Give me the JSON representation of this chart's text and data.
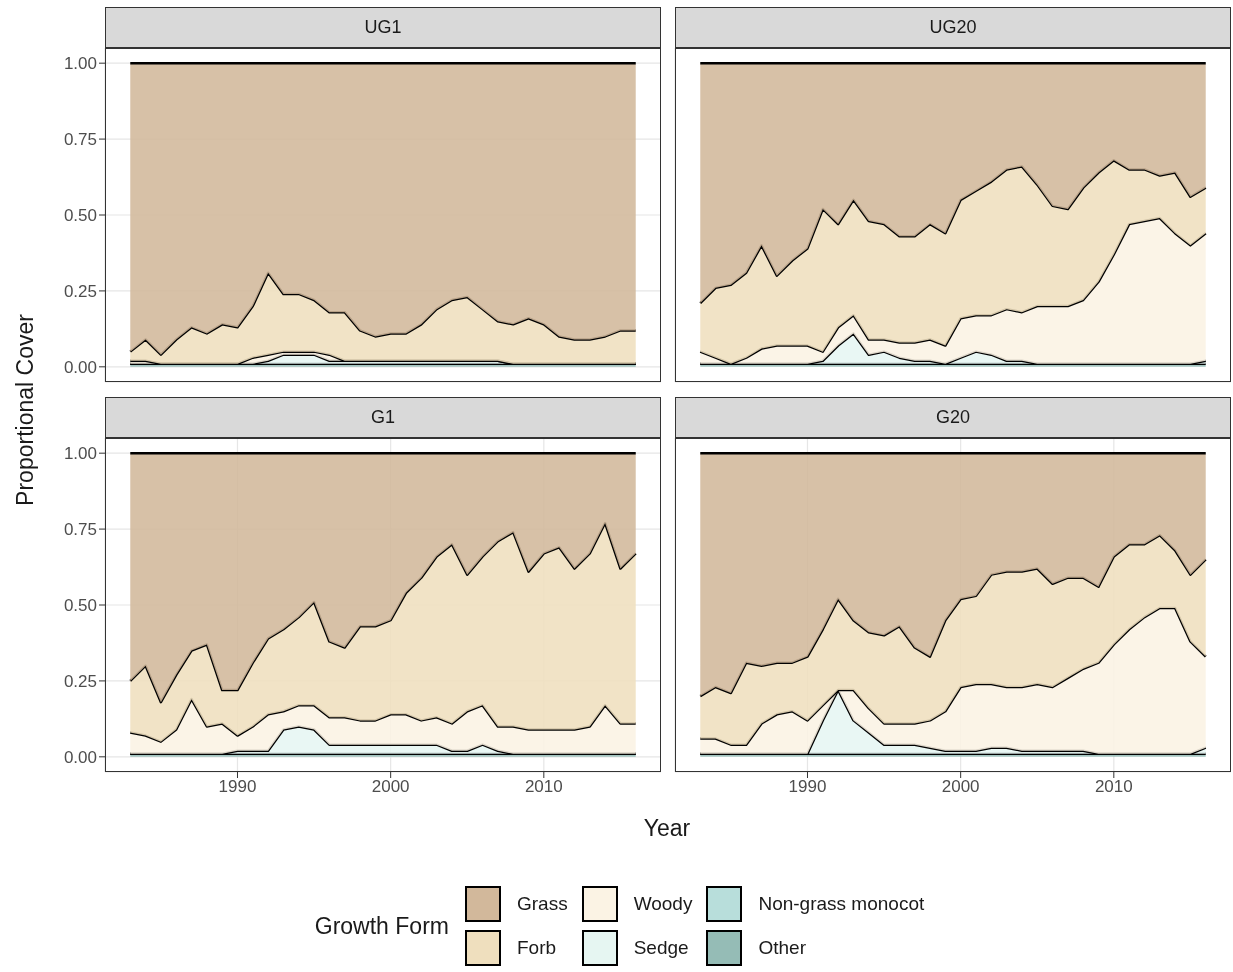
{
  "chart_data": [
    {
      "type": "area",
      "title": "UG1",
      "ylabel": "Proportional Cover",
      "stacked": true,
      "grid": true,
      "tick_labels": "y",
      "legend": "bottom",
      "legend_title": "Growth Form",
      "xlim": [
        1981.35,
        2017.65
      ],
      "ylim": [
        -0.05,
        1.05
      ],
      "yticks": [
        {
          "value": 0,
          "label": "0.00"
        },
        {
          "value": 0.25,
          "label": "0.25"
        },
        {
          "value": 0.5,
          "label": "0.50"
        },
        {
          "value": 0.75,
          "label": "0.75"
        },
        {
          "value": 1,
          "label": "1.00"
        }
      ],
      "x": [
        1983,
        1984,
        1985,
        1986,
        1987,
        1988,
        1989,
        1990,
        1991,
        1992,
        1993,
        1994,
        1995,
        1996,
        1997,
        1998,
        1999,
        2000,
        2001,
        2002,
        2003,
        2004,
        2005,
        2006,
        2007,
        2008,
        2009,
        2010,
        2011,
        2012,
        2013,
        2014,
        2015,
        2016
      ],
      "series": [
        {
          "name": "Other",
          "color": "#95bcb6",
          "values": [
            0.01,
            0.01,
            0.01,
            0.01,
            0.01,
            0.01,
            0.01,
            0.01,
            0.01,
            0.01,
            0.01,
            0.01,
            0.01,
            0.01,
            0.01,
            0.01,
            0.01,
            0.01,
            0.01,
            0.01,
            0.01,
            0.01,
            0.01,
            0.01,
            0.01,
            0.01,
            0.01,
            0.01,
            0.01,
            0.01,
            0.01,
            0.01,
            0.01,
            0.01
          ]
        },
        {
          "name": "Non-grass monocot",
          "color": "#b8dedb",
          "values": [
            null,
            null,
            null,
            null,
            null,
            null,
            null,
            null,
            null,
            null,
            null,
            null,
            null,
            null,
            null,
            null,
            null,
            null,
            null,
            null,
            null,
            null,
            null,
            null,
            null,
            null,
            null,
            null,
            null,
            null,
            null,
            null,
            null,
            null
          ]
        },
        {
          "name": "Sedge",
          "color": "#e6f6f2",
          "values": [
            0,
            0,
            0,
            0,
            0,
            0,
            0,
            0,
            0,
            0.01,
            0.03,
            0.03,
            0.03,
            0.01,
            0.01,
            0.01,
            0.01,
            0.01,
            0.01,
            0.01,
            0.01,
            0.01,
            0.01,
            0.01,
            0.01,
            0,
            0,
            0,
            0,
            0,
            0,
            0,
            0,
            0
          ]
        },
        {
          "name": "Woody",
          "color": "#fbf3e4",
          "values": [
            0.01,
            0.01,
            0,
            0,
            0,
            0,
            0,
            0,
            0.02,
            0.02,
            0.01,
            0.01,
            0.01,
            0.02,
            0,
            0,
            0,
            0,
            0,
            0,
            0,
            0,
            0,
            0,
            0,
            0,
            0,
            0,
            0,
            0,
            0,
            0,
            0,
            0
          ]
        },
        {
          "name": "Forb",
          "color": "#efdfbe",
          "values": [
            0.03,
            0.07,
            0.03,
            0.08,
            0.12,
            0.1,
            0.13,
            0.12,
            0.17,
            0.27,
            0.19,
            0.19,
            0.17,
            0.14,
            0.16,
            0.1,
            0.08,
            0.09,
            0.09,
            0.12,
            0.17,
            0.2,
            0.21,
            0.17,
            0.13,
            0.13,
            0.15,
            0.13,
            0.09,
            0.08,
            0.08,
            0.09,
            0.11,
            0.11
          ]
        },
        {
          "name": "Grass",
          "color": "#d2b89b",
          "values": [
            0.95,
            0.91,
            0.96,
            0.91,
            0.87,
            0.89,
            0.86,
            0.87,
            0.8,
            0.69,
            0.76,
            0.76,
            0.78,
            0.82,
            0.82,
            0.88,
            0.9,
            0.89,
            0.89,
            0.86,
            0.81,
            0.78,
            0.77,
            0.81,
            0.85,
            0.86,
            0.84,
            0.86,
            0.9,
            0.91,
            0.91,
            0.9,
            0.88,
            0.88
          ]
        }
      ]
    },
    {
      "type": "area",
      "title": "UG20",
      "stacked": true,
      "grid": true,
      "tick_labels": false,
      "xlim": [
        1981.35,
        2017.65
      ],
      "ylim": [
        -0.05,
        1.05
      ],
      "x": [
        1983,
        1984,
        1985,
        1986,
        1987,
        1988,
        1989,
        1990,
        1991,
        1992,
        1993,
        1994,
        1995,
        1996,
        1997,
        1998,
        1999,
        2000,
        2001,
        2002,
        2003,
        2004,
        2005,
        2006,
        2007,
        2008,
        2009,
        2010,
        2011,
        2012,
        2013,
        2014,
        2015,
        2016
      ],
      "series": [
        {
          "color": "#95bcb6",
          "values": [
            0.01,
            0.01,
            0.01,
            0.01,
            0.01,
            0.01,
            0.01,
            0.01,
            0.01,
            0.01,
            0.01,
            0.01,
            0.01,
            0.01,
            0.01,
            0.01,
            0.01,
            0.01,
            0.01,
            0.01,
            0.01,
            0.01,
            0.01,
            0.01,
            0.01,
            0.01,
            0.01,
            0.01,
            0.01,
            0.01,
            0.01,
            0.01,
            0.01,
            0.01
          ]
        },
        {
          "color": "#b8dedb",
          "values": [
            null,
            null,
            null,
            null,
            null,
            null,
            null,
            null,
            null,
            null,
            null,
            null,
            null,
            null,
            null,
            null,
            null,
            null,
            null,
            null,
            null,
            null,
            null,
            null,
            null,
            null,
            null,
            null,
            null,
            null,
            null,
            null,
            null,
            null
          ]
        },
        {
          "color": "#e6f6f2",
          "values": [
            0,
            0,
            0,
            0,
            0,
            0,
            0,
            0,
            0.01,
            0.06,
            0.1,
            0.03,
            0.04,
            0.02,
            0.01,
            0.01,
            0,
            0.02,
            0.04,
            0.03,
            0.01,
            0.01,
            0,
            0,
            0,
            0,
            0,
            0,
            0,
            0,
            0,
            0,
            0,
            0.01
          ]
        },
        {
          "color": "#fbf3e4",
          "values": [
            0.04,
            0.02,
            0,
            0.02,
            0.05,
            0.06,
            0.06,
            0.06,
            0.03,
            0.06,
            0.06,
            0.05,
            0.04,
            0.05,
            0.06,
            0.07,
            0.06,
            0.13,
            0.12,
            0.13,
            0.17,
            0.16,
            0.19,
            0.19,
            0.19,
            0.21,
            0.27,
            0.36,
            0.46,
            0.47,
            0.48,
            0.43,
            0.39,
            0.42
          ]
        },
        {
          "color": "#efdfbe",
          "values": [
            0.16,
            0.23,
            0.26,
            0.28,
            0.34,
            0.23,
            0.28,
            0.32,
            0.47,
            0.34,
            0.38,
            0.39,
            0.38,
            0.35,
            0.35,
            0.38,
            0.37,
            0.39,
            0.41,
            0.44,
            0.46,
            0.48,
            0.4,
            0.33,
            0.32,
            0.37,
            0.36,
            0.31,
            0.18,
            0.17,
            0.14,
            0.2,
            0.16,
            0.15
          ]
        },
        {
          "color": "#d2b89b",
          "values": [
            0.79,
            0.74,
            0.73,
            0.69,
            0.6,
            0.7,
            0.65,
            0.61,
            0.48,
            0.53,
            0.45,
            0.52,
            0.53,
            0.57,
            0.57,
            0.53,
            0.56,
            0.45,
            0.42,
            0.39,
            0.35,
            0.34,
            0.4,
            0.47,
            0.48,
            0.41,
            0.36,
            0.32,
            0.35,
            0.35,
            0.37,
            0.36,
            0.44,
            0.41
          ]
        }
      ]
    },
    {
      "type": "area",
      "title": "G1",
      "xlabel": "Year",
      "stacked": true,
      "grid": true,
      "xlim": [
        1981.35,
        2017.65
      ],
      "xticks": [
        1990,
        2000,
        2010
      ],
      "ylim": [
        -0.05,
        1.05
      ],
      "yticks": [
        {
          "value": 0,
          "label": "0.00"
        },
        {
          "value": 0.25,
          "label": "0.25"
        },
        {
          "value": 0.5,
          "label": "0.50"
        },
        {
          "value": 0.75,
          "label": "0.75"
        },
        {
          "value": 1,
          "label": "1.00"
        }
      ],
      "x": [
        1983,
        1984,
        1985,
        1986,
        1987,
        1988,
        1989,
        1990,
        1991,
        1992,
        1993,
        1994,
        1995,
        1996,
        1997,
        1998,
        1999,
        2000,
        2001,
        2002,
        2003,
        2004,
        2005,
        2006,
        2007,
        2008,
        2009,
        2010,
        2011,
        2012,
        2013,
        2014,
        2015,
        2016
      ],
      "series": [
        {
          "color": "#95bcb6",
          "values": [
            0.01,
            0.01,
            0.01,
            0.01,
            0.01,
            0.01,
            0.01,
            0.01,
            0.01,
            0.01,
            0.01,
            0.01,
            0.01,
            0.01,
            0.01,
            0.01,
            0.01,
            0.01,
            0.01,
            0.01,
            0.01,
            0.01,
            0.01,
            0.01,
            0.01,
            0.01,
            0.01,
            0.01,
            0.01,
            0.01,
            0.01,
            0.01,
            0.01,
            0.01
          ]
        },
        {
          "color": "#b8dedb",
          "values": [
            null,
            null,
            null,
            null,
            null,
            null,
            null,
            null,
            null,
            null,
            null,
            null,
            null,
            null,
            null,
            null,
            null,
            null,
            null,
            null,
            null,
            null,
            null,
            null,
            null,
            null,
            null,
            null,
            null,
            null,
            null,
            null,
            null,
            null
          ]
        },
        {
          "color": "#e6f6f2",
          "values": [
            0,
            0,
            0,
            0,
            0,
            0,
            0,
            0.01,
            0.01,
            0.01,
            0.08,
            0.09,
            0.08,
            0.03,
            0.03,
            0.03,
            0.03,
            0.03,
            0.03,
            0.03,
            0.03,
            0.01,
            0.01,
            0.03,
            0.01,
            0,
            0,
            0,
            0,
            0,
            0,
            0,
            0,
            0
          ]
        },
        {
          "color": "#fbf3e4",
          "values": [
            0.07,
            0.06,
            0.04,
            0.08,
            0.18,
            0.09,
            0.1,
            0.05,
            0.08,
            0.12,
            0.06,
            0.07,
            0.08,
            0.09,
            0.09,
            0.08,
            0.08,
            0.1,
            0.1,
            0.08,
            0.09,
            0.09,
            0.13,
            0.13,
            0.08,
            0.09,
            0.08,
            0.08,
            0.08,
            0.08,
            0.09,
            0.16,
            0.1,
            0.1
          ]
        },
        {
          "color": "#efdfbe",
          "values": [
            0.17,
            0.23,
            0.13,
            0.18,
            0.16,
            0.27,
            0.11,
            0.15,
            0.21,
            0.25,
            0.27,
            0.29,
            0.34,
            0.25,
            0.23,
            0.31,
            0.31,
            0.31,
            0.4,
            0.47,
            0.53,
            0.59,
            0.45,
            0.49,
            0.61,
            0.64,
            0.52,
            0.58,
            0.6,
            0.53,
            0.57,
            0.6,
            0.51,
            0.56
          ]
        },
        {
          "color": "#d2b89b",
          "values": [
            0.75,
            0.7,
            0.82,
            0.73,
            0.65,
            0.63,
            0.78,
            0.78,
            0.69,
            0.61,
            0.58,
            0.54,
            0.49,
            0.62,
            0.64,
            0.57,
            0.57,
            0.55,
            0.46,
            0.41,
            0.34,
            0.3,
            0.4,
            0.34,
            0.29,
            0.26,
            0.39,
            0.33,
            0.31,
            0.38,
            0.33,
            0.23,
            0.38,
            0.33
          ]
        }
      ]
    },
    {
      "type": "area",
      "title": "G20",
      "stacked": true,
      "grid": true,
      "tick_labels": "x",
      "xlim": [
        1981.35,
        2017.65
      ],
      "xticks": [
        1990,
        2000,
        2010
      ],
      "ylim": [
        -0.05,
        1.05
      ],
      "x": [
        1983,
        1984,
        1985,
        1986,
        1987,
        1988,
        1989,
        1990,
        1991,
        1992,
        1993,
        1994,
        1995,
        1996,
        1997,
        1998,
        1999,
        2000,
        2001,
        2002,
        2003,
        2004,
        2005,
        2006,
        2007,
        2008,
        2009,
        2010,
        2011,
        2012,
        2013,
        2014,
        2015,
        2016
      ],
      "series": [
        {
          "color": "#95bcb6",
          "values": [
            0.01,
            0.01,
            0.01,
            0.01,
            0.01,
            0.01,
            0.01,
            0.01,
            0.01,
            0.01,
            0.01,
            0.01,
            0.01,
            0.01,
            0.01,
            0.01,
            0.01,
            0.01,
            0.01,
            0.01,
            0.01,
            0.01,
            0.01,
            0.01,
            0.01,
            0.01,
            0.01,
            0.01,
            0.01,
            0.01,
            0.01,
            0.01,
            0.01,
            0.01
          ]
        },
        {
          "color": "#b8dedb",
          "values": [
            null,
            null,
            null,
            null,
            null,
            null,
            null,
            null,
            null,
            null,
            null,
            null,
            null,
            null,
            null,
            null,
            null,
            null,
            null,
            null,
            null,
            null,
            null,
            null,
            null,
            null,
            null,
            null,
            null,
            null,
            null,
            null,
            null,
            null
          ]
        },
        {
          "color": "#e6f6f2",
          "values": [
            0,
            0,
            0,
            0,
            0,
            0,
            0,
            0,
            0.11,
            0.21,
            0.11,
            0.07,
            0.03,
            0.03,
            0.03,
            0.02,
            0.01,
            0.01,
            0.01,
            0.02,
            0.02,
            0.01,
            0.01,
            0.01,
            0.01,
            0.01,
            0,
            0,
            0,
            0,
            0,
            0,
            0,
            0.02
          ]
        },
        {
          "color": "#fbf3e4",
          "values": [
            0.05,
            0.05,
            0.03,
            0.03,
            0.1,
            0.13,
            0.14,
            0.11,
            0.05,
            0,
            0.1,
            0.08,
            0.07,
            0.07,
            0.07,
            0.09,
            0.13,
            0.21,
            0.22,
            0.21,
            0.2,
            0.21,
            0.22,
            0.21,
            0.24,
            0.27,
            0.3,
            0.36,
            0.41,
            0.45,
            0.48,
            0.48,
            0.37,
            0.3
          ]
        },
        {
          "color": "#efdfbe",
          "values": [
            0.14,
            0.17,
            0.17,
            0.27,
            0.19,
            0.17,
            0.16,
            0.21,
            0.25,
            0.3,
            0.23,
            0.25,
            0.29,
            0.32,
            0.25,
            0.21,
            0.3,
            0.29,
            0.29,
            0.36,
            0.38,
            0.38,
            0.38,
            0.34,
            0.33,
            0.3,
            0.25,
            0.29,
            0.28,
            0.24,
            0.24,
            0.19,
            0.22,
            0.32
          ]
        },
        {
          "color": "#d2b89b",
          "values": [
            0.8,
            0.77,
            0.79,
            0.69,
            0.7,
            0.69,
            0.69,
            0.67,
            0.58,
            0.48,
            0.55,
            0.59,
            0.6,
            0.57,
            0.64,
            0.67,
            0.55,
            0.48,
            0.47,
            0.4,
            0.39,
            0.39,
            0.38,
            0.43,
            0.41,
            0.41,
            0.44,
            0.34,
            0.3,
            0.3,
            0.27,
            0.32,
            0.4,
            0.35
          ]
        }
      ]
    }
  ]
}
